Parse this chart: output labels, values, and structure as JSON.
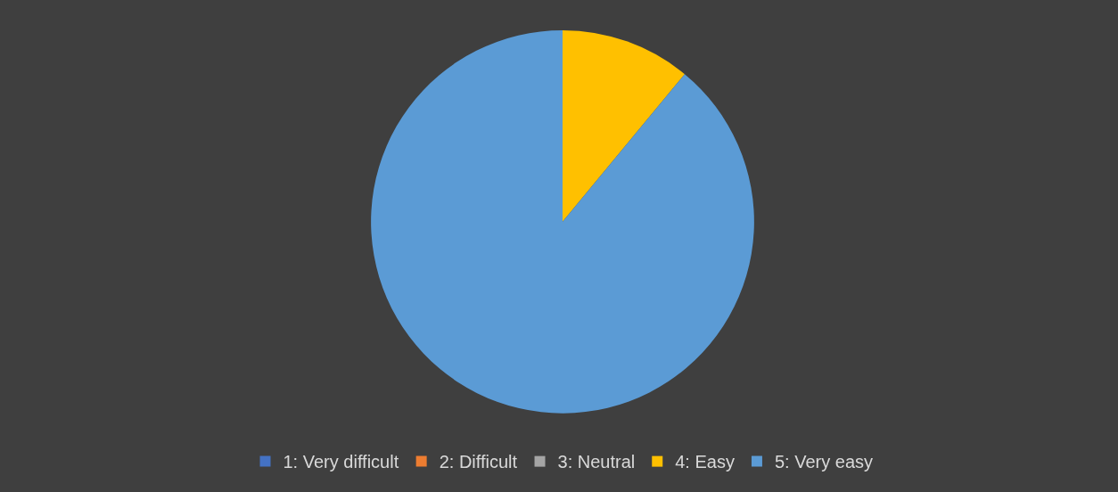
{
  "chart_data": {
    "type": "pie",
    "categories": [
      "1: Very difficult",
      "2: Difficult",
      "3: Neutral",
      "4: Easy",
      "5: Very easy"
    ],
    "values": [
      0,
      0,
      0,
      11,
      89
    ],
    "colors": [
      "#4472c4",
      "#ed7d31",
      "#a5a5a5",
      "#ffc000",
      "#5b9bd5"
    ],
    "legend": "bottom"
  }
}
